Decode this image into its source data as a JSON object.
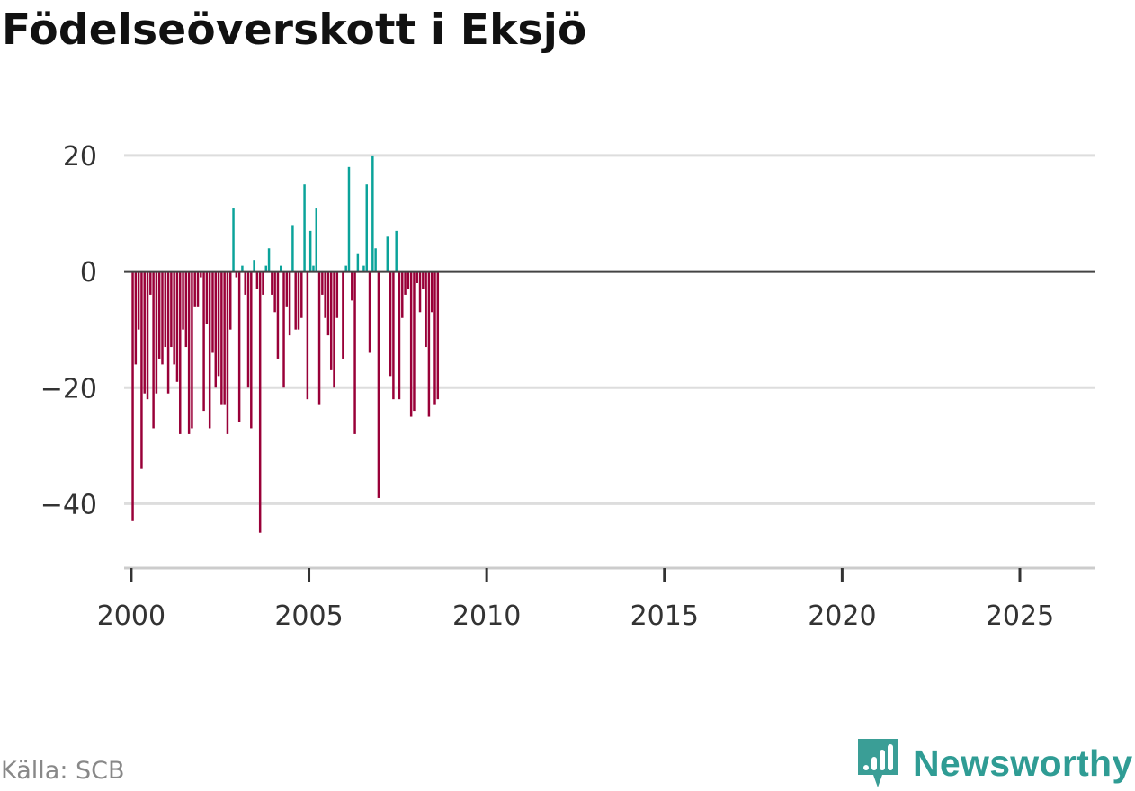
{
  "title": "Födelseöverskott i Eksjö",
  "source": "Källa: SCB",
  "brand": {
    "name": "Newsworthy"
  },
  "colors": {
    "positive": "#0aa39a",
    "negative": "#990038",
    "grid": "#dddddd",
    "zero": "#444444"
  },
  "chart_data": {
    "type": "bar",
    "title": "Födelseöverskott i Eksjö",
    "xlabel": "",
    "ylabel": "",
    "ylim": [
      -50,
      22
    ],
    "xlim": [
      1999.8,
      2027.1
    ],
    "yticks": [
      20,
      0,
      -20,
      -40
    ],
    "ytick_labels": [
      "20",
      "0",
      "−20",
      "−40"
    ],
    "xticks": [
      2000,
      2005,
      2010,
      2015,
      2020,
      2025
    ],
    "xtick_labels": [
      "2000",
      "2005",
      "2010",
      "2015",
      "2020",
      "2025"
    ],
    "frequency": "monthly",
    "start": [
      2000,
      1
    ],
    "values": [
      -43,
      -16,
      -10,
      -34,
      -21,
      -22,
      -4,
      -27,
      -21,
      -15,
      -16,
      -13,
      -21,
      -13,
      -16,
      -19,
      -28,
      -10,
      -13,
      -28,
      -27,
      -6,
      -6,
      -1,
      -24,
      -9,
      -27,
      -14,
      -20,
      -18,
      -23,
      -23,
      -28,
      -10,
      11,
      -1,
      -26,
      1,
      -4,
      -20,
      -27,
      2,
      -3,
      -45,
      -4,
      1,
      4,
      -4,
      -7,
      -15,
      1,
      -20,
      -6,
      -11,
      8,
      -10,
      -10,
      -8,
      15,
      -22,
      7,
      1,
      11,
      -23,
      -4,
      -8,
      -11,
      -17,
      -20,
      -8,
      0,
      -15,
      1,
      18,
      -5,
      -28,
      3,
      0,
      1,
      15,
      -14,
      20,
      4,
      -39,
      0,
      0,
      6,
      -18,
      -22,
      7,
      -22,
      -8,
      -4,
      -3,
      -25,
      -24,
      -2,
      -7,
      -3,
      -13,
      -25,
      -7,
      -23,
      -22
    ]
  }
}
